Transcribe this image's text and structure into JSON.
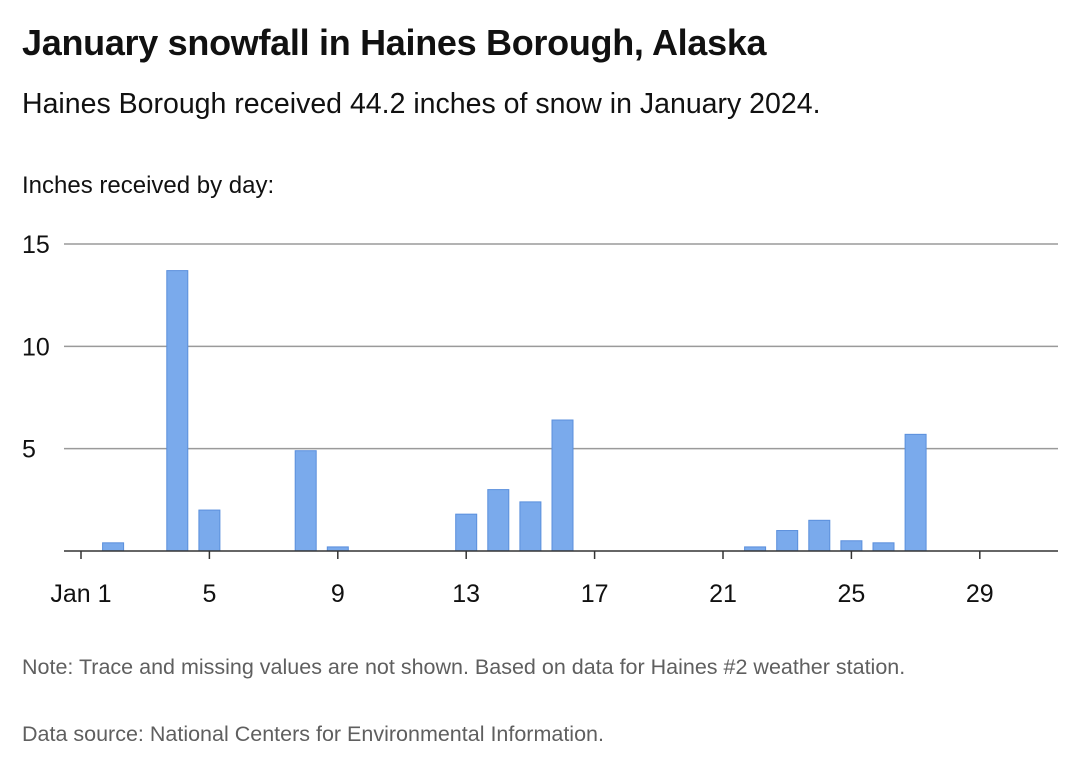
{
  "title": "January snowfall in Haines Borough, Alaska",
  "subtitle": "Haines Borough received 44.2 inches of snow in January 2024.",
  "axis_caption": "Inches received by day:",
  "note": "Note: Trace and missing values are not shown. Based on data for Haines #2 weather station.",
  "source": "Data source: National Centers for Environmental Information.",
  "colors": {
    "bar": "#7aaaec",
    "bar_stroke": "#5a8fdc",
    "grid": "#9a9a9a",
    "axis": "#333333"
  },
  "chart_data": {
    "type": "bar",
    "title": "January snowfall in Haines Borough, Alaska",
    "xlabel": "",
    "ylabel": "Inches received by day:",
    "ylim": [
      0,
      15
    ],
    "yticks": [
      5,
      10,
      15
    ],
    "grid": true,
    "x_tick_labels": [
      {
        "day": 1,
        "label": "Jan 1"
      },
      {
        "day": 5,
        "label": "5"
      },
      {
        "day": 9,
        "label": "9"
      },
      {
        "day": 13,
        "label": "13"
      },
      {
        "day": 17,
        "label": "17"
      },
      {
        "day": 21,
        "label": "21"
      },
      {
        "day": 25,
        "label": "25"
      },
      {
        "day": 29,
        "label": "29"
      }
    ],
    "days": [
      2,
      4,
      5,
      8,
      9,
      13,
      14,
      15,
      16,
      22,
      23,
      24,
      25,
      26,
      27
    ],
    "values": [
      0.4,
      13.7,
      2.0,
      4.9,
      0.2,
      1.8,
      3.0,
      2.4,
      6.4,
      0.2,
      1.0,
      1.5,
      0.5,
      0.4,
      5.7
    ]
  }
}
